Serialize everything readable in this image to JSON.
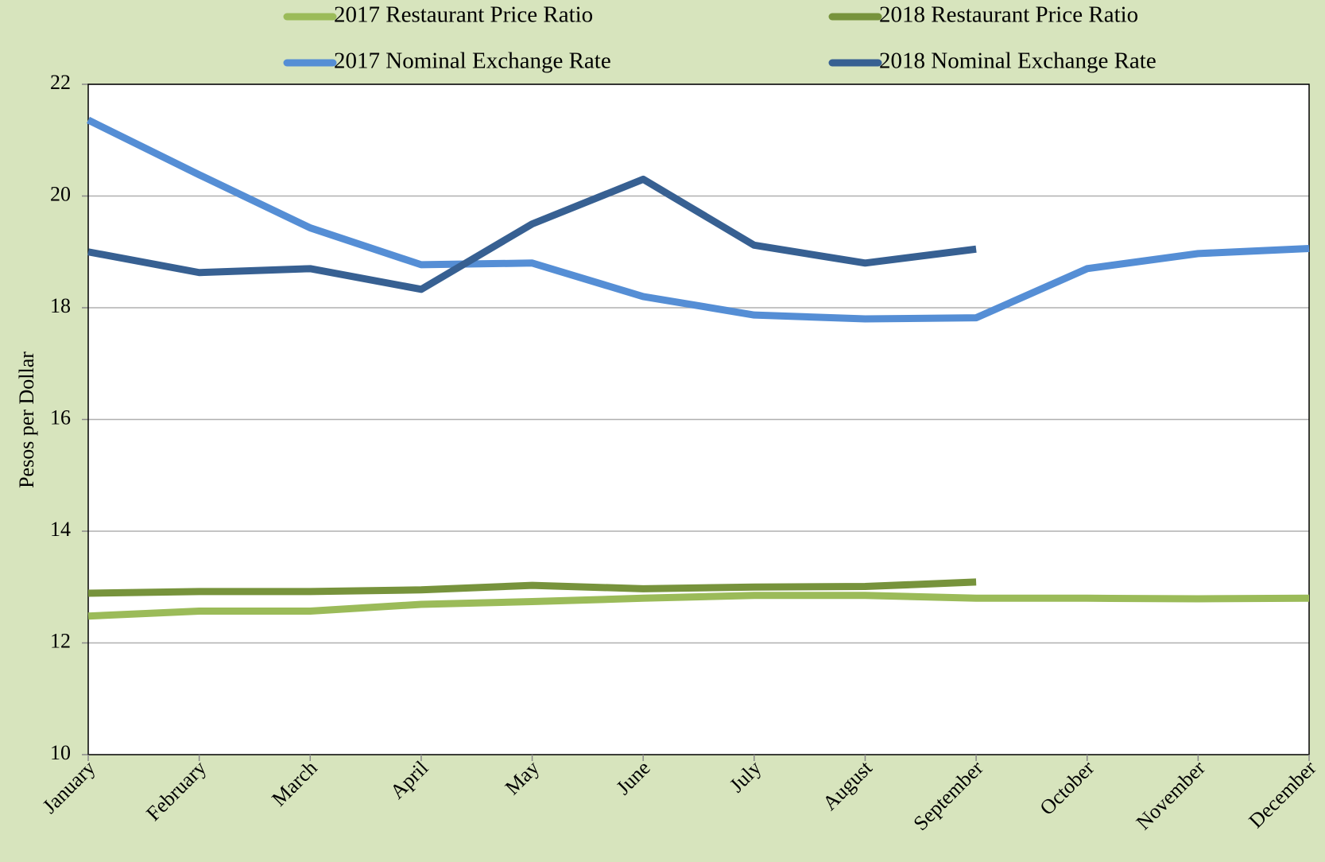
{
  "chart_data": {
    "type": "line",
    "y_label": "Pesos per Dollar",
    "categories": [
      "January",
      "February",
      "March",
      "April",
      "May",
      "June",
      "July",
      "August",
      "September",
      "October",
      "November",
      "December"
    ],
    "series": [
      {
        "name": "2017 Restaurant Price Ratio",
        "color": "#9bbb59",
        "values": [
          12.48,
          12.57,
          12.57,
          12.69,
          12.74,
          12.8,
          12.85,
          12.85,
          12.8,
          12.8,
          12.79,
          12.8
        ]
      },
      {
        "name": "2018 Restaurant Price Ratio",
        "color": "#77933c",
        "values": [
          12.89,
          12.92,
          12.92,
          12.95,
          13.03,
          12.97,
          13.0,
          13.01,
          13.09,
          null,
          null,
          null
        ]
      },
      {
        "name": "2017 Nominal Exchange Rate",
        "color": "#558ed5",
        "values": [
          21.36,
          20.38,
          19.43,
          18.77,
          18.8,
          18.2,
          17.87,
          17.8,
          17.82,
          18.7,
          18.97,
          19.06
        ]
      },
      {
        "name": "2018 Nominal Exchange Rate",
        "color": "#376092",
        "values": [
          19.0,
          18.63,
          18.7,
          18.33,
          19.5,
          20.3,
          19.12,
          18.8,
          19.05,
          null,
          null,
          null
        ]
      }
    ],
    "ylim": [
      10,
      22
    ],
    "yticks": [
      10,
      12,
      14,
      16,
      18,
      20,
      22
    ],
    "grid": true
  }
}
